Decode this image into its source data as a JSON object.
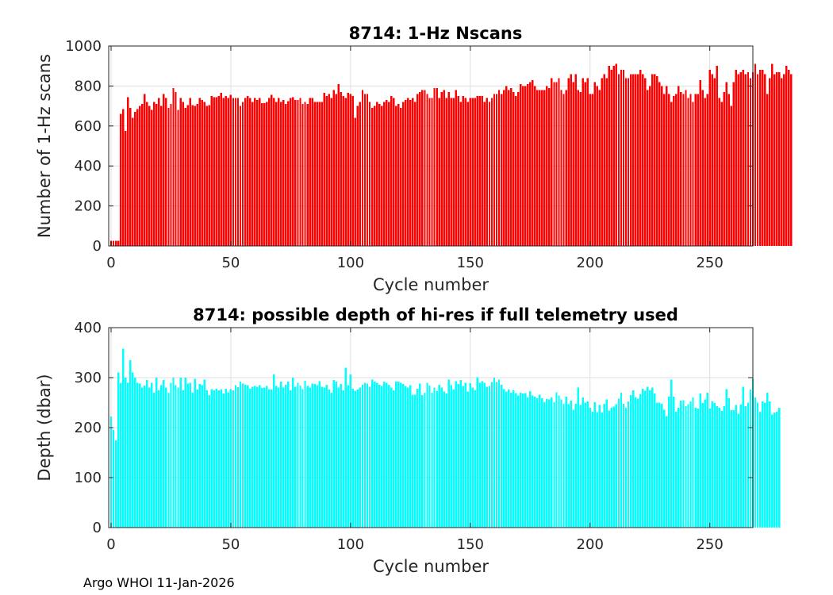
{
  "footer": "Argo WHOI 11-Jan-2026",
  "colors": {
    "nscans_bar": "#ff0000",
    "depth_bar": "#00ffff",
    "axis": "#262626",
    "grid": "#dfdfdf"
  },
  "chart_data": [
    {
      "type": "bar",
      "title": "8714: 1-Hz Nscans",
      "xlabel": "Cycle number",
      "ylabel": "Number of 1-Hz scans",
      "xlim": [
        -1,
        268
      ],
      "ylim": [
        0,
        1000
      ],
      "xticks": [
        0,
        50,
        100,
        150,
        200,
        250
      ],
      "yticks": [
        0,
        200,
        400,
        600,
        800,
        1000
      ],
      "grid": true,
      "x_start": 0,
      "values": [
        25,
        25,
        25,
        25,
        660,
        685,
        575,
        745,
        690,
        640,
        670,
        685,
        700,
        710,
        760,
        720,
        700,
        680,
        720,
        710,
        740,
        700,
        760,
        740,
        690,
        710,
        790,
        770,
        680,
        740,
        720,
        690,
        705,
        740,
        705,
        700,
        710,
        740,
        730,
        720,
        700,
        705,
        750,
        745,
        745,
        750,
        765,
        740,
        750,
        740,
        755,
        740,
        740,
        740,
        700,
        720,
        740,
        750,
        740,
        720,
        740,
        730,
        740,
        715,
        715,
        720,
        740,
        755,
        740,
        720,
        740,
        720,
        730,
        710,
        725,
        740,
        745,
        730,
        730,
        740,
        710,
        720,
        710,
        740,
        740,
        720,
        720,
        720,
        720,
        765,
        750,
        760,
        740,
        780,
        760,
        810,
        770,
        750,
        740,
        765,
        760,
        750,
        640,
        700,
        720,
        780,
        760,
        760,
        720,
        690,
        700,
        720,
        710,
        700,
        720,
        730,
        720,
        750,
        740,
        700,
        710,
        690,
        720,
        730,
        740,
        730,
        740,
        720,
        760,
        770,
        780,
        780,
        760,
        740,
        740,
        790,
        790,
        740,
        770,
        780,
        740,
        770,
        740,
        740,
        780,
        750,
        720,
        750,
        740,
        720,
        740,
        740,
        740,
        750,
        750,
        750,
        720,
        740,
        720,
        740,
        760,
        760,
        780,
        760,
        780,
        800,
        780,
        790,
        770,
        750,
        770,
        810,
        800,
        800,
        810,
        820,
        830,
        800,
        780,
        780,
        780,
        780,
        800,
        790,
        840,
        820,
        820,
        840,
        780,
        760,
        780,
        840,
        860,
        820,
        860,
        780,
        770,
        840,
        820,
        840,
        760,
        760,
        820,
        800,
        780,
        840,
        860,
        840,
        900,
        880,
        900,
        910,
        860,
        880,
        880,
        840,
        840,
        860,
        860,
        860,
        860,
        880,
        860,
        840,
        780,
        800,
        860,
        860,
        850,
        820,
        800,
        760,
        800,
        760,
        720,
        750,
        760,
        800,
        770,
        760,
        780,
        740,
        760,
        720,
        760,
        760,
        830,
        780,
        740,
        760,
        880,
        860,
        840,
        900,
        740,
        720,
        770,
        820,
        760,
        700,
        820,
        880,
        860,
        870,
        880,
        860,
        870,
        840,
        870,
        910,
        860,
        880,
        880,
        860,
        760,
        840,
        910,
        860,
        870,
        870,
        840,
        860,
        900,
        880,
        860
      ]
    },
    {
      "type": "bar",
      "title": "8714: possible depth of hi-res if full telemetry used",
      "xlabel": "Cycle number",
      "ylabel": "Depth (dbar)",
      "xlim": [
        -1,
        268
      ],
      "ylim": [
        0,
        400
      ],
      "xticks": [
        0,
        50,
        100,
        150,
        200,
        250
      ],
      "yticks": [
        0,
        100,
        200,
        300,
        400
      ],
      "grid": true,
      "x_start": 0,
      "values": [
        222,
        195,
        175,
        310,
        290,
        358,
        300,
        290,
        335,
        310,
        300,
        290,
        288,
        280,
        284,
        295,
        280,
        290,
        270,
        300,
        275,
        285,
        295,
        280,
        270,
        290,
        300,
        285,
        280,
        300,
        275,
        300,
        288,
        290,
        270,
        298,
        276,
        287,
        285,
        296,
        275,
        265,
        277,
        275,
        278,
        275,
        276,
        268,
        278,
        271,
        277,
        275,
        285,
        281,
        292,
        288,
        286,
        285,
        278,
        282,
        283,
        282,
        285,
        279,
        280,
        283,
        276,
        276,
        306,
        283,
        280,
        292,
        280,
        286,
        292,
        275,
        300,
        282,
        290,
        284,
        277,
        294,
        283,
        280,
        288,
        287,
        285,
        293,
        282,
        280,
        286,
        276,
        270,
        295,
        292,
        280,
        287,
        275,
        320,
        285,
        306,
        278,
        274,
        276,
        280,
        286,
        290,
        288,
        282,
        296,
        292,
        290,
        286,
        283,
        292,
        290,
        286,
        280,
        275,
        292,
        292,
        290,
        287,
        283,
        280,
        285,
        266,
        266,
        278,
        288,
        265,
        270,
        290,
        284,
        270,
        280,
        273,
        286,
        280,
        272,
        268,
        296,
        285,
        276,
        293,
        287,
        295,
        283,
        290,
        272,
        289,
        280,
        275,
        301,
        290,
        293,
        290,
        282,
        283,
        291,
        300,
        291,
        296,
        286,
        277,
        272,
        276,
        270,
        275,
        269,
        264,
        270,
        268,
        269,
        260,
        273,
        264,
        262,
        259,
        266,
        259,
        251,
        257,
        256,
        260,
        251,
        271,
        264,
        256,
        248,
        262,
        247,
        254,
        236,
        248,
        280,
        245,
        260,
        250,
        252,
        240,
        232,
        251,
        231,
        245,
        230,
        248,
        256,
        234,
        240,
        242,
        247,
        258,
        270,
        248,
        240,
        252,
        265,
        275,
        260,
        258,
        267,
        278,
        274,
        282,
        275,
        280,
        268,
        250,
        250,
        248,
        236,
        223,
        262,
        296,
        262,
        232,
        240,
        254,
        255,
        243,
        247,
        252,
        260,
        240,
        238,
        268,
        249,
        256,
        270,
        238,
        252,
        249,
        243,
        240,
        233,
        243,
        277,
        259,
        235,
        235,
        245,
        228,
        246,
        282,
        243,
        250,
        276,
        298,
        260,
        250,
        232,
        252,
        250,
        270,
        252,
        226,
        230,
        232,
        240
      ]
    }
  ]
}
